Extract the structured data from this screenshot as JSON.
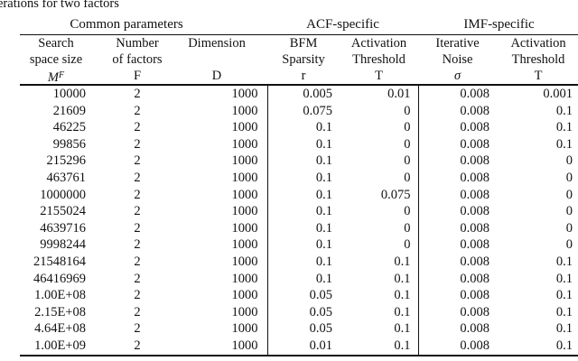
{
  "caption": "erations for two factors",
  "table": {
    "groups": [
      {
        "label": "Common parameters",
        "span": 3
      },
      {
        "label": "ACF-specific",
        "span": 2
      },
      {
        "label": "IMF-specific",
        "span": 2
      }
    ],
    "columns": [
      {
        "line1": "Search",
        "line2": "space size",
        "symbol": "M",
        "symbol_sup": "F",
        "italic": true
      },
      {
        "line1": "Number",
        "line2": "of factors",
        "symbol": "F",
        "italic": false
      },
      {
        "line1": "Dimension",
        "line2": "",
        "symbol": "D",
        "italic": false
      },
      {
        "line1": "BFM",
        "line2": "Sparsity",
        "symbol": "r",
        "italic": false
      },
      {
        "line1": "Activation",
        "line2": "Threshold",
        "symbol": "T",
        "italic": false
      },
      {
        "line1": "Iterative",
        "line2": "Noise",
        "symbol": "σ",
        "italic": true
      },
      {
        "line1": "Activation",
        "line2": "Threshold",
        "symbol": "T",
        "italic": false
      }
    ],
    "column_semantics": [
      "search-space-size",
      "number-of-factors",
      "dimension",
      "bfm-sparsity",
      "acf-activation-threshold",
      "iterative-noise",
      "imf-activation-threshold"
    ],
    "rows": [
      [
        "10000",
        "2",
        "1000",
        "0.005",
        "0.01",
        "0.008",
        "0.001"
      ],
      [
        "21609",
        "2",
        "1000",
        "0.075",
        "0",
        "0.008",
        "0.1"
      ],
      [
        "46225",
        "2",
        "1000",
        "0.1",
        "0",
        "0.008",
        "0.1"
      ],
      [
        "99856",
        "2",
        "1000",
        "0.1",
        "0",
        "0.008",
        "0.1"
      ],
      [
        "215296",
        "2",
        "1000",
        "0.1",
        "0",
        "0.008",
        "0"
      ],
      [
        "463761",
        "2",
        "1000",
        "0.1",
        "0",
        "0.008",
        "0"
      ],
      [
        "1000000",
        "2",
        "1000",
        "0.1",
        "0.075",
        "0.008",
        "0"
      ],
      [
        "2155024",
        "2",
        "1000",
        "0.1",
        "0",
        "0.008",
        "0"
      ],
      [
        "4639716",
        "2",
        "1000",
        "0.1",
        "0",
        "0.008",
        "0"
      ],
      [
        "9998244",
        "2",
        "1000",
        "0.1",
        "0",
        "0.008",
        "0"
      ],
      [
        "21548164",
        "2",
        "1000",
        "0.1",
        "0.1",
        "0.008",
        "0.1"
      ],
      [
        "46416969",
        "2",
        "1000",
        "0.1",
        "0.1",
        "0.008",
        "0.1"
      ],
      [
        "1.00E+08",
        "2",
        "1000",
        "0.05",
        "0.1",
        "0.008",
        "0.1"
      ],
      [
        "2.15E+08",
        "2",
        "1000",
        "0.05",
        "0.1",
        "0.008",
        "0.1"
      ],
      [
        "4.64E+08",
        "2",
        "1000",
        "0.05",
        "0.1",
        "0.008",
        "0.1"
      ],
      [
        "1.00E+09",
        "2",
        "1000",
        "0.01",
        "0.1",
        "0.008",
        "0.1"
      ]
    ],
    "colors": {
      "text": "#111111",
      "background": "#ffffff",
      "rule": "#111111"
    }
  }
}
